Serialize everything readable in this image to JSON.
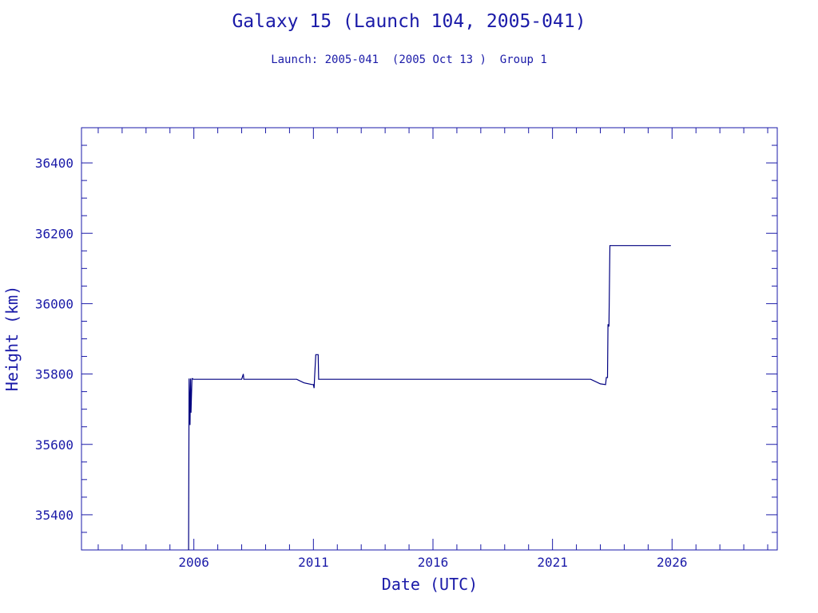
{
  "header": {
    "title": "Galaxy 15 (Launch 104, 2005-041)",
    "subtitle": "Launch: 2005-041  (2005 Oct 13 )  Group 1"
  },
  "colors": {
    "ink": "#1a1aa8",
    "line": "#000080",
    "background": "#ffffff"
  },
  "chart_data": {
    "type": "line",
    "title": "Galaxy 15 (Launch 104, 2005-041)",
    "subtitle": "Launch: 2005-041  (2005 Oct 13 )  Group 1",
    "xlabel": "Date (UTC)",
    "ylabel": "Height (km)",
    "xlim": [
      2001.3,
      2030.4
    ],
    "ylim": [
      35300,
      36500
    ],
    "xticks": [
      2006,
      2011,
      2016,
      2021,
      2026
    ],
    "xtick_labels": [
      "2006",
      "2011",
      "2016",
      "2021",
      "2026"
    ],
    "yticks": [
      35400,
      35600,
      35800,
      36000,
      36200,
      36400
    ],
    "ytick_labels": [
      "35400",
      "35600",
      "35800",
      "36000",
      "36200",
      "36400"
    ],
    "grid": false,
    "series": [
      {
        "x": [
          2005.78,
          2005.8,
          2005.84,
          2005.86,
          2005.88,
          2005.92,
          2005.95,
          2005.97,
          2006.0,
          2007.0,
          2008.0,
          2008.07,
          2008.09,
          2009.0,
          2010.0,
          2010.3,
          2010.6,
          2010.95,
          2011.0,
          2011.03,
          2011.05,
          2011.1,
          2011.2,
          2011.22,
          2011.3,
          2012.0,
          2014.0,
          2016.0,
          2018.0,
          2020.0,
          2022.0,
          2022.6,
          2023.0,
          2023.22,
          2023.25,
          2023.3,
          2023.32,
          2023.34,
          2023.36,
          2023.4,
          2023.42,
          2023.45,
          2024.0,
          2025.0,
          2025.95
        ],
        "y": [
          35300,
          35787,
          35655,
          35787,
          35690,
          35787,
          35787,
          35785,
          35785,
          35785,
          35785,
          35800,
          35785,
          35785,
          35785,
          35785,
          35775,
          35770,
          35770,
          35760,
          35790,
          35855,
          35855,
          35785,
          35785,
          35785,
          35785,
          35785,
          35785,
          35785,
          35785,
          35785,
          35772,
          35770,
          35790,
          35790,
          35940,
          35940,
          35935,
          36165,
          36165,
          36165,
          36165,
          36165,
          36165
        ]
      }
    ]
  }
}
